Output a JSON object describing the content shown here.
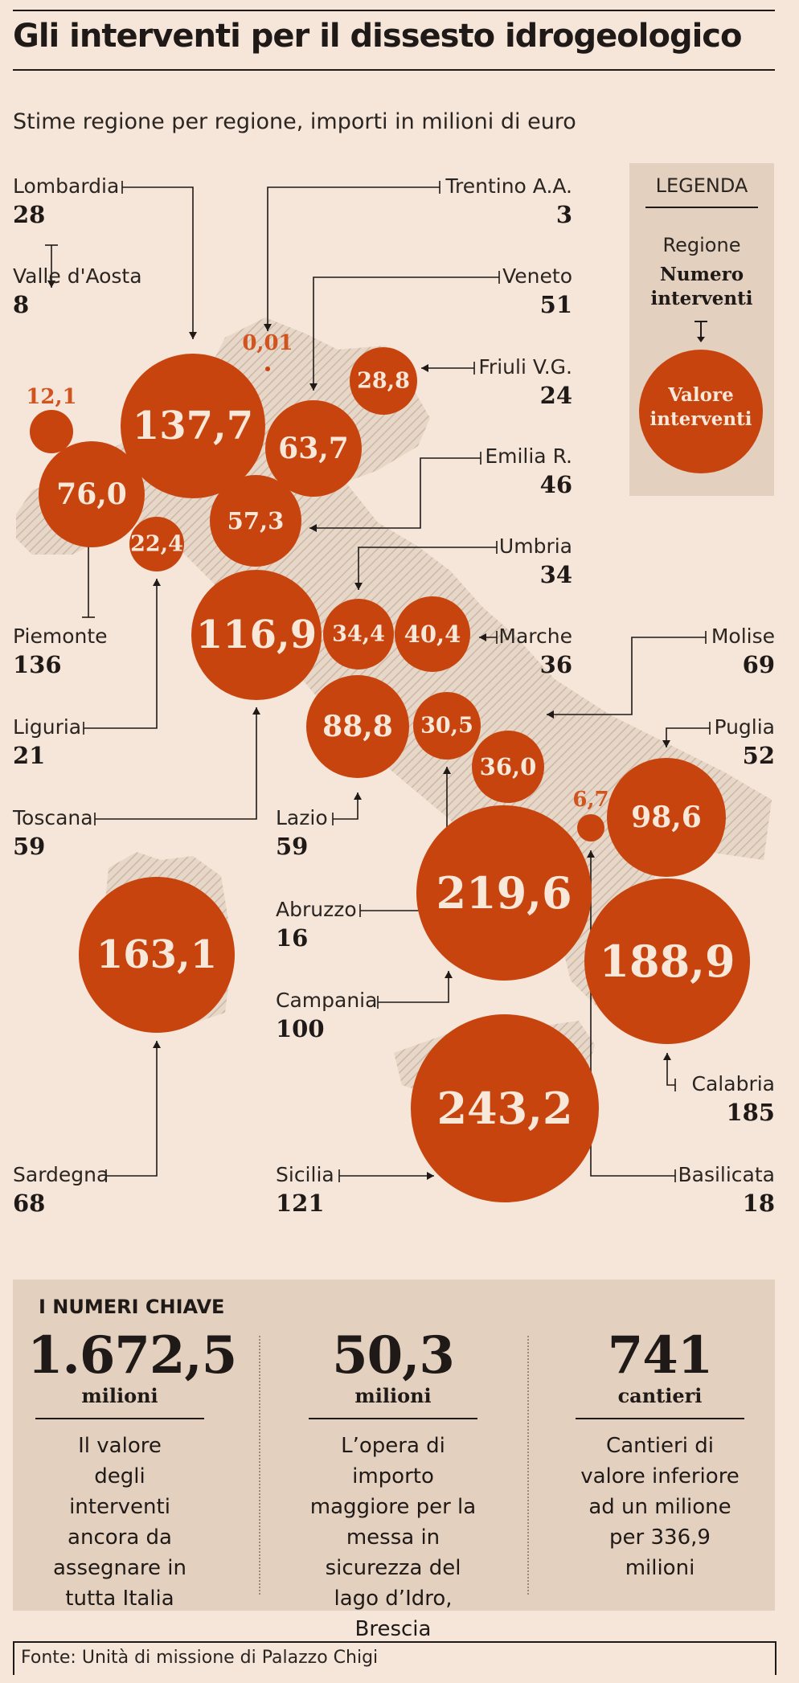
{
  "title": "Gli interventi per il dissesto idrogeologico",
  "subtitle": "Stime regione per regione, importi in milioni di euro",
  "legend": {
    "title": "LEGENDA",
    "region_label": "Regione",
    "count_label": "Numero interventi",
    "value_label": "Valore interventi"
  },
  "colors": {
    "bubble": "#c8440e",
    "background": "#f5e6d9",
    "panel": "#e4d0bf",
    "text": "#1f1a17"
  },
  "chart_data": {
    "type": "bubble-map",
    "regions": [
      {
        "name": "Lombardia",
        "interventions": "28",
        "value": "137,7"
      },
      {
        "name": "Trentino A.A.",
        "interventions": "3",
        "value": "0,01"
      },
      {
        "name": "Valle d'Aosta",
        "interventions": "8",
        "value": "12,1"
      },
      {
        "name": "Veneto",
        "interventions": "51",
        "value": "63,7"
      },
      {
        "name": "Friuli V.G.",
        "interventions": "24",
        "value": "28,8"
      },
      {
        "name": "Emilia R.",
        "interventions": "46",
        "value": "57,3"
      },
      {
        "name": "Umbria",
        "interventions": "34",
        "value": "34,4"
      },
      {
        "name": "Piemonte",
        "interventions": "136",
        "value": "76,0"
      },
      {
        "name": "Marche",
        "interventions": "36",
        "value": "40,4"
      },
      {
        "name": "Molise",
        "interventions": "69",
        "value": "36,0"
      },
      {
        "name": "Liguria",
        "interventions": "21",
        "value": "22,4"
      },
      {
        "name": "Puglia",
        "interventions": "52",
        "value": "98,6"
      },
      {
        "name": "Toscana",
        "interventions": "59",
        "value": "116,9"
      },
      {
        "name": "Lazio",
        "interventions": "59",
        "value": "88,8"
      },
      {
        "name": "Abruzzo",
        "interventions": "16",
        "value": "30,5"
      },
      {
        "name": "Campania",
        "interventions": "100",
        "value": "219,6"
      },
      {
        "name": "Sardegna",
        "interventions": "68",
        "value": "163,1"
      },
      {
        "name": "Calabria",
        "interventions": "185",
        "value": "188,9"
      },
      {
        "name": "Sicilia",
        "interventions": "121",
        "value": "243,2"
      },
      {
        "name": "Basilicata",
        "interventions": "18",
        "value": "6,7"
      }
    ]
  },
  "key_numbers": {
    "heading": "I NUMERI CHIAVE",
    "items": [
      {
        "value": "1.672,5",
        "unit": "milioni",
        "description": "Il valore degli interventi ancora da assegnare in tutta Italia"
      },
      {
        "value": "50,3",
        "unit": "milioni",
        "description": "L’opera di importo maggiore per la messa in sicurezza del lago d’Idro, Brescia"
      },
      {
        "value": "741",
        "unit": "cantieri",
        "description": "Cantieri di valore inferiore ad un milione per 336,9 milioni"
      }
    ]
  },
  "source": "Fonte: Unità di missione di Palazzo Chigi"
}
